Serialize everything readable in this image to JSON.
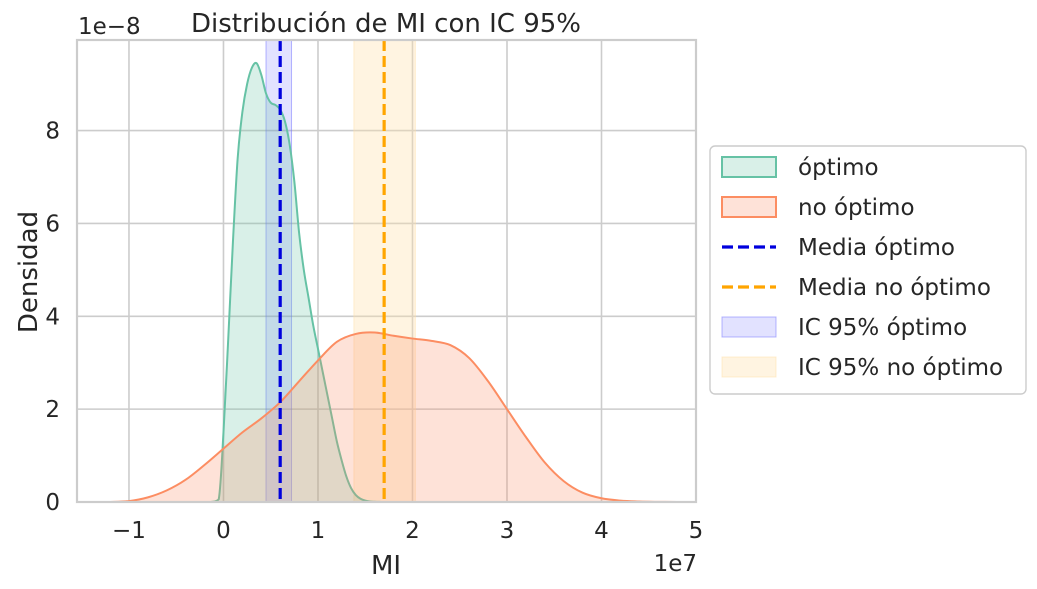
{
  "chart_data": {
    "type": "area",
    "title": "Distribución de MI con IC 95%",
    "xlabel": "MI",
    "ylabel": "Densidad",
    "x_offset_label": "1e7",
    "y_offset_label": "1e−8",
    "x_scale": 10000000,
    "y_scale": 1e-08,
    "xlim": [
      -15500000,
      50000000
    ],
    "ylim": [
      0,
      9.95e-08
    ],
    "x_ticks": [
      -10000000,
      0,
      10000000,
      20000000,
      30000000,
      40000000,
      50000000
    ],
    "x_tick_labels": [
      "−1",
      "0",
      "1",
      "2",
      "3",
      "4",
      "5"
    ],
    "y_ticks": [
      0,
      2e-08,
      4e-08,
      6e-08,
      8e-08
    ],
    "y_tick_labels": [
      "0",
      "2",
      "4",
      "6",
      "8"
    ],
    "grid": true,
    "legend_position": "center-right outside",
    "series": [
      {
        "name": "óptimo",
        "kind": "density",
        "color": "#66c2a5",
        "x": [
          -1300000,
          -500000,
          0,
          500000,
          1000000,
          1500000,
          2000000,
          2500000,
          3000000,
          3500000,
          4000000,
          4500000,
          5000000,
          5500000,
          6000000,
          6500000,
          7000000,
          7500000,
          8000000,
          8500000,
          9000000,
          9500000,
          10000000,
          10500000,
          11000000,
          11500000,
          12000000,
          12500000,
          13000000,
          13500000,
          14000000,
          14500000,
          15000000,
          15500000,
          16000000,
          16500000,
          17000000
        ],
        "y": [
          0,
          6e-10,
          1.5e-08,
          3.5e-08,
          5.6e-08,
          7.4e-08,
          8.4e-08,
          9e-08,
          9.35e-08,
          9.45e-08,
          9.2e-08,
          8.8e-08,
          8.6e-08,
          8.55e-08,
          8.45e-08,
          8.2e-08,
          7.7e-08,
          6.9e-08,
          5.8e-08,
          5e-08,
          4.4e-08,
          3.8e-08,
          3.3e-08,
          2.8e-08,
          2.3e-08,
          1.8e-08,
          1.3e-08,
          9e-09,
          5.5e-09,
          3e-09,
          1.5e-09,
          7e-10,
          3e-10,
          1e-10,
          5e-11,
          2e-11,
          0
        ]
      },
      {
        "name": "no óptimo",
        "kind": "density",
        "color": "#fc8d62",
        "x": [
          -12000000,
          -10000000,
          -8000000,
          -6000000,
          -4000000,
          -2000000,
          0,
          2000000,
          4000000,
          6000000,
          8000000,
          10000000,
          12000000,
          14000000,
          16000000,
          18000000,
          20000000,
          22000000,
          24000000,
          26000000,
          28000000,
          30000000,
          32000000,
          34000000,
          36000000,
          38000000,
          40000000,
          42000000,
          44000000,
          46000000,
          48000000
        ],
        "y": [
          0,
          2e-10,
          1e-09,
          2.5e-09,
          4.8e-09,
          8e-09,
          1.15e-08,
          1.5e-08,
          1.8e-08,
          2.15e-08,
          2.6e-08,
          3.05e-08,
          3.45e-08,
          3.62e-08,
          3.65e-08,
          3.58e-08,
          3.52e-08,
          3.47e-08,
          3.38e-08,
          3.1e-08,
          2.6e-08,
          2e-08,
          1.4e-08,
          8.5e-09,
          4.5e-09,
          2e-09,
          8e-10,
          3e-10,
          1e-10,
          3e-11,
          0
        ]
      },
      {
        "name": "Media óptimo",
        "kind": "vline",
        "color": "#0000dd",
        "x": 6000000
      },
      {
        "name": "Media no óptimo",
        "kind": "vline",
        "color": "#ffa500",
        "x": 17000000
      },
      {
        "name": "IC 95% óptimo",
        "kind": "vspan",
        "color": "#7070ff",
        "x_range": [
          4500000,
          7200000
        ]
      },
      {
        "name": "IC 95% no óptimo",
        "kind": "vspan",
        "color": "#ffe0a8",
        "x_range": [
          13800000,
          20300000
        ]
      }
    ]
  }
}
